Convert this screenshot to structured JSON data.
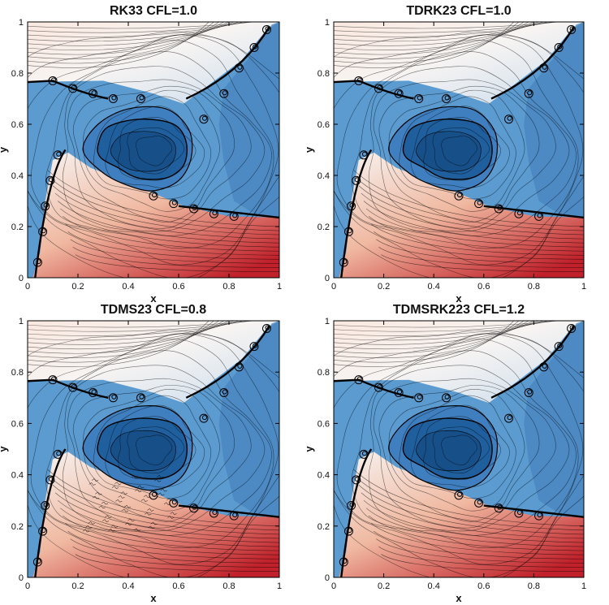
{
  "chart_data": [
    {
      "type": "heatmap",
      "title": "RK33 CFL=1.0",
      "xlabel": "x",
      "ylabel": "y",
      "xlim": [
        0,
        1
      ],
      "ylim": [
        0,
        1
      ],
      "xticks": [
        "0",
        "0.2",
        "0.4",
        "0.6",
        "0.8",
        "1"
      ],
      "yticks": [
        "0",
        "0.2",
        "0.4",
        "0.6",
        "0.8",
        "1"
      ],
      "noise": 0.0
    },
    {
      "type": "heatmap",
      "title": "TDRK23 CFL=1.0",
      "xlabel": "x",
      "ylabel": "y",
      "xlim": [
        0,
        1
      ],
      "ylim": [
        0,
        1
      ],
      "xticks": [
        "0",
        "0.2",
        "0.4",
        "0.6",
        "0.8",
        "1"
      ],
      "yticks": [
        "0",
        "0.2",
        "0.4",
        "0.6",
        "0.8",
        "1"
      ],
      "noise": 0.0
    },
    {
      "type": "heatmap",
      "title": "TDMS23 CFL=0.8",
      "xlabel": "x",
      "ylabel": "y",
      "xlim": [
        0,
        1
      ],
      "ylim": [
        0,
        1
      ],
      "xticks": [
        "0",
        "0.2",
        "0.4",
        "0.6",
        "0.8",
        "1"
      ],
      "yticks": [
        "0",
        "0.2",
        "0.4",
        "0.6",
        "0.8",
        "1"
      ],
      "noise": 1.0
    },
    {
      "type": "heatmap",
      "title": "TDMSRK223 CFL=1.2",
      "xlabel": "x",
      "ylabel": "y",
      "xlim": [
        0,
        1
      ],
      "ylim": [
        0,
        1
      ],
      "xticks": [
        "0",
        "0.2",
        "0.4",
        "0.6",
        "0.8",
        "1"
      ],
      "yticks": [
        "0",
        "0.2",
        "0.4",
        "0.6",
        "0.8",
        "1"
      ],
      "noise": 0.0
    }
  ],
  "colors": {
    "deep_blue": "#1f5f9e",
    "mid_blue": "#5b9bd0",
    "light_blue": "#c9dcee",
    "white": "#f7f4f2",
    "light_red": "#f0b8a0",
    "deep_red": "#c0212b",
    "line": "#000000"
  }
}
